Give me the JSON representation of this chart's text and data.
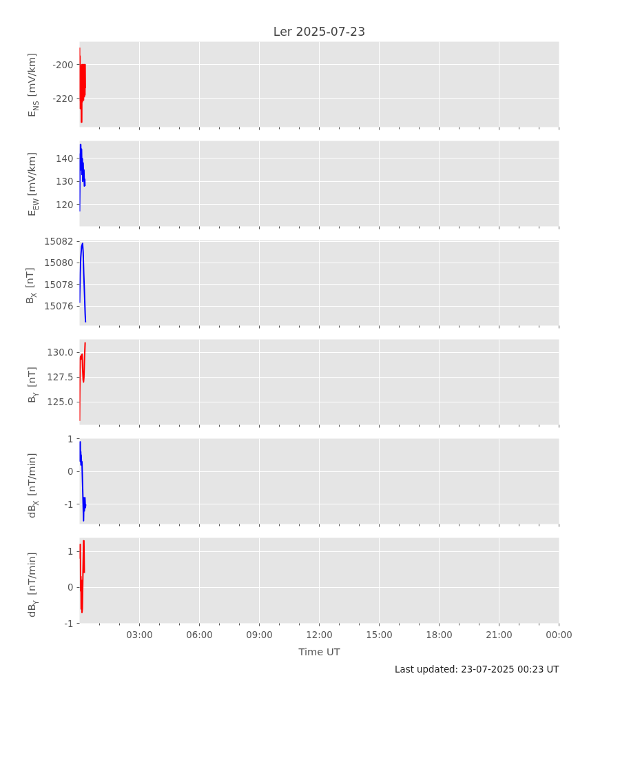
{
  "chart_data": [
    {
      "type": "line",
      "title": "Ler 2025-07-23",
      "ylabel": "E$_{NS}$ [mV/km]",
      "tick_labels": "y",
      "grid": true,
      "xlim": [
        0,
        24
      ],
      "xticks": [
        {
          "value": 1,
          "label": null
        },
        {
          "value": 2,
          "label": null
        },
        {
          "value": 3,
          "label": null
        },
        {
          "value": 4,
          "label": null
        },
        {
          "value": 5,
          "label": null
        },
        {
          "value": 6,
          "label": null
        },
        {
          "value": 7,
          "label": null
        },
        {
          "value": 8,
          "label": null
        },
        {
          "value": 9,
          "label": null
        },
        {
          "value": 10,
          "label": null
        },
        {
          "value": 11,
          "label": null
        },
        {
          "value": 12,
          "label": null
        },
        {
          "value": 13,
          "label": null
        },
        {
          "value": 14,
          "label": null
        },
        {
          "value": 15,
          "label": null
        },
        {
          "value": 16,
          "label": null
        },
        {
          "value": 17,
          "label": null
        },
        {
          "value": 18,
          "label": null
        },
        {
          "value": 19,
          "label": null
        },
        {
          "value": 20,
          "label": null
        },
        {
          "value": 21,
          "label": null
        },
        {
          "value": 22,
          "label": null
        },
        {
          "value": 23,
          "label": null
        },
        {
          "value": 24,
          "label": null
        }
      ],
      "ylim": [
        -237,
        -186.5
      ],
      "yticks": [
        -220,
        -200
      ],
      "x": [
        0,
        0.01,
        0.02,
        0.03,
        0.04,
        0.05,
        0.06,
        0.07,
        0.08,
        0.09,
        0.1,
        0.11,
        0.12,
        0.14,
        0.15,
        0.17,
        0.18,
        0.2,
        0.22,
        0.24,
        0.25,
        0.27,
        0.28,
        0.29
      ],
      "series": [
        {
          "color": "#ff0000",
          "values": [
            -190,
            -221,
            -195,
            -226,
            -200,
            -224,
            -201,
            -225,
            -202,
            -234,
            -203,
            -234,
            -200,
            -222,
            -200,
            -220,
            -200,
            -221,
            -200,
            -219,
            -200,
            -218,
            -200,
            -214
          ]
        }
      ]
    },
    {
      "type": "line",
      "ylabel": "E$_{EW}$ [mV/km]",
      "tick_labels": "y",
      "grid": true,
      "xlim": [
        0,
        24
      ],
      "xticks": [
        {
          "value": 1,
          "label": null
        },
        {
          "value": 2,
          "label": null
        },
        {
          "value": 3,
          "label": null
        },
        {
          "value": 4,
          "label": null
        },
        {
          "value": 5,
          "label": null
        },
        {
          "value": 6,
          "label": null
        },
        {
          "value": 7,
          "label": null
        },
        {
          "value": 8,
          "label": null
        },
        {
          "value": 9,
          "label": null
        },
        {
          "value": 10,
          "label": null
        },
        {
          "value": 11,
          "label": null
        },
        {
          "value": 12,
          "label": null
        },
        {
          "value": 13,
          "label": null
        },
        {
          "value": 14,
          "label": null
        },
        {
          "value": 15,
          "label": null
        },
        {
          "value": 16,
          "label": null
        },
        {
          "value": 17,
          "label": null
        },
        {
          "value": 18,
          "label": null
        },
        {
          "value": 19,
          "label": null
        },
        {
          "value": 20,
          "label": null
        },
        {
          "value": 21,
          "label": null
        },
        {
          "value": 22,
          "label": null
        },
        {
          "value": 23,
          "label": null
        },
        {
          "value": 24,
          "label": null
        }
      ],
      "ylim": [
        110.5,
        147.6
      ],
      "yticks": [
        120,
        130,
        140
      ],
      "x": [
        0,
        0.01,
        0.02,
        0.03,
        0.04,
        0.05,
        0.06,
        0.08,
        0.1,
        0.12,
        0.14,
        0.16,
        0.18,
        0.2,
        0.22,
        0.24,
        0.26,
        0.27
      ],
      "series": [
        {
          "color": "#0000ff",
          "values": [
            117,
            126,
            142,
            138,
            146,
            136,
            146,
            135,
            144,
            133,
            140,
            130,
            138,
            131,
            135,
            128,
            131,
            128
          ]
        }
      ]
    },
    {
      "type": "line",
      "ylabel": "B$_{X}$ [nT]",
      "tick_labels": "y",
      "grid": true,
      "xlim": [
        0,
        24
      ],
      "xticks": [
        {
          "value": 1,
          "label": null
        },
        {
          "value": 2,
          "label": null
        },
        {
          "value": 3,
          "label": null
        },
        {
          "value": 4,
          "label": null
        },
        {
          "value": 5,
          "label": null
        },
        {
          "value": 6,
          "label": null
        },
        {
          "value": 7,
          "label": null
        },
        {
          "value": 8,
          "label": null
        },
        {
          "value": 9,
          "label": null
        },
        {
          "value": 10,
          "label": null
        },
        {
          "value": 11,
          "label": null
        },
        {
          "value": 12,
          "label": null
        },
        {
          "value": 13,
          "label": null
        },
        {
          "value": 14,
          "label": null
        },
        {
          "value": 15,
          "label": null
        },
        {
          "value": 16,
          "label": null
        },
        {
          "value": 17,
          "label": null
        },
        {
          "value": 18,
          "label": null
        },
        {
          "value": 19,
          "label": null
        },
        {
          "value": 20,
          "label": null
        },
        {
          "value": 21,
          "label": null
        },
        {
          "value": 22,
          "label": null
        },
        {
          "value": 23,
          "label": null
        },
        {
          "value": 24,
          "label": null
        }
      ],
      "ylim": [
        15074.2,
        15082.1
      ],
      "yticks": [
        15076,
        15078,
        15080,
        15082
      ],
      "x": [
        0,
        0.03,
        0.06,
        0.1,
        0.15,
        0.18,
        0.21,
        0.25,
        0.28,
        0.3
      ],
      "series": [
        {
          "color": "#0000ff",
          "values": [
            15076.3,
            15079,
            15080.5,
            15081.5,
            15081.8,
            15081,
            15079,
            15077,
            15075.3,
            15074.5
          ]
        }
      ]
    },
    {
      "type": "line",
      "ylabel": "B$_{Y}$ [nT]",
      "tick_labels": "y",
      "grid": true,
      "xlim": [
        0,
        24
      ],
      "xticks": [
        {
          "value": 1,
          "label": null
        },
        {
          "value": 2,
          "label": null
        },
        {
          "value": 3,
          "label": null
        },
        {
          "value": 4,
          "label": null
        },
        {
          "value": 5,
          "label": null
        },
        {
          "value": 6,
          "label": null
        },
        {
          "value": 7,
          "label": null
        },
        {
          "value": 8,
          "label": null
        },
        {
          "value": 9,
          "label": null
        },
        {
          "value": 10,
          "label": null
        },
        {
          "value": 11,
          "label": null
        },
        {
          "value": 12,
          "label": null
        },
        {
          "value": 13,
          "label": null
        },
        {
          "value": 14,
          "label": null
        },
        {
          "value": 15,
          "label": null
        },
        {
          "value": 16,
          "label": null
        },
        {
          "value": 17,
          "label": null
        },
        {
          "value": 18,
          "label": null
        },
        {
          "value": 19,
          "label": null
        },
        {
          "value": 20,
          "label": null
        },
        {
          "value": 21,
          "label": null
        },
        {
          "value": 22,
          "label": null
        },
        {
          "value": 23,
          "label": null
        },
        {
          "value": 24,
          "label": null
        }
      ],
      "ylim": [
        122.7,
        131.3
      ],
      "yticks": [
        {
          "value": 125,
          "label": "125.0"
        },
        {
          "value": 127.5,
          "label": "127.5"
        },
        {
          "value": 130,
          "label": "130.0"
        }
      ],
      "x": [
        0,
        0.01,
        0.03,
        0.05,
        0.07,
        0.1,
        0.13,
        0.15,
        0.18,
        0.2,
        0.22,
        0.25,
        0.28
      ],
      "series": [
        {
          "color": "#ff0000",
          "values": [
            123.1,
            126,
            129.4,
            129.6,
            129.3,
            129.7,
            129.8,
            128.5,
            127.2,
            127.0,
            127.5,
            129.5,
            131.0
          ]
        }
      ]
    },
    {
      "type": "line",
      "ylabel": "dB$_{X}$ [nT/min]",
      "tick_labels": "y",
      "grid": true,
      "xlim": [
        0,
        24
      ],
      "xticks": [
        {
          "value": 1,
          "label": null
        },
        {
          "value": 2,
          "label": null
        },
        {
          "value": 3,
          "label": null
        },
        {
          "value": 4,
          "label": null
        },
        {
          "value": 5,
          "label": null
        },
        {
          "value": 6,
          "label": null
        },
        {
          "value": 7,
          "label": null
        },
        {
          "value": 8,
          "label": null
        },
        {
          "value": 9,
          "label": null
        },
        {
          "value": 10,
          "label": null
        },
        {
          "value": 11,
          "label": null
        },
        {
          "value": 12,
          "label": null
        },
        {
          "value": 13,
          "label": null
        },
        {
          "value": 14,
          "label": null
        },
        {
          "value": 15,
          "label": null
        },
        {
          "value": 16,
          "label": null
        },
        {
          "value": 17,
          "label": null
        },
        {
          "value": 18,
          "label": null
        },
        {
          "value": 19,
          "label": null
        },
        {
          "value": 20,
          "label": null
        },
        {
          "value": 21,
          "label": null
        },
        {
          "value": 22,
          "label": null
        },
        {
          "value": 23,
          "label": null
        },
        {
          "value": 24,
          "label": null
        }
      ],
      "ylim": [
        -1.6,
        1.0
      ],
      "yticks": [
        -1,
        0,
        1
      ],
      "x": [
        0,
        0.02,
        0.035,
        0.045,
        0.06,
        0.07,
        0.08,
        0.1,
        0.12,
        0.2,
        0.22,
        0.24,
        0.27,
        0.29,
        0.31
      ],
      "series": [
        {
          "color": "#0000ff",
          "values": [
            0.3,
            0.9,
            0.9,
            0.3,
            0.6,
            0.2,
            0.5,
            0.2,
            0.3,
            -1.5,
            -0.8,
            -1.2,
            -0.8,
            -1.1,
            -1.0
          ]
        }
      ]
    },
    {
      "type": "line",
      "ylabel": "dB$_{Y}$ [nT/min]",
      "xlabel": "Time UT",
      "grid": true,
      "annotations": [
        "Last updated: 23-07-2025 00:23 UT"
      ],
      "xlim": [
        0,
        24
      ],
      "xticks": [
        {
          "value": 1,
          "label": null
        },
        {
          "value": 2,
          "label": null
        },
        {
          "value": 3,
          "label": "03:00"
        },
        {
          "value": 4,
          "label": null
        },
        {
          "value": 5,
          "label": null
        },
        {
          "value": 6,
          "label": "06:00"
        },
        {
          "value": 7,
          "label": null
        },
        {
          "value": 8,
          "label": null
        },
        {
          "value": 9,
          "label": "09:00"
        },
        {
          "value": 10,
          "label": null
        },
        {
          "value": 11,
          "label": null
        },
        {
          "value": 12,
          "label": "12:00"
        },
        {
          "value": 13,
          "label": null
        },
        {
          "value": 14,
          "label": null
        },
        {
          "value": 15,
          "label": "15:00"
        },
        {
          "value": 16,
          "label": null
        },
        {
          "value": 17,
          "label": null
        },
        {
          "value": 18,
          "label": "18:00"
        },
        {
          "value": 19,
          "label": null
        },
        {
          "value": 20,
          "label": null
        },
        {
          "value": 21,
          "label": "21:00"
        },
        {
          "value": 22,
          "label": null
        },
        {
          "value": 23,
          "label": null
        },
        {
          "value": 24,
          "label": "00:00"
        }
      ],
      "ylim": [
        -1,
        1.38
      ],
      "yticks": [
        -1,
        0,
        1
      ],
      "x": [
        0,
        0.02,
        0.035,
        0.05,
        0.07,
        0.08,
        0.1,
        0.12,
        0.14,
        0.17,
        0.2,
        0.22,
        0.24
      ],
      "series": [
        {
          "color": "#ff0000",
          "values": [
            0.8,
            1.2,
            1.2,
            -0.1,
            0.3,
            -0.6,
            0.2,
            -0.7,
            -0.6,
            0.4,
            1.3,
            1.3,
            0.4
          ]
        }
      ]
    }
  ]
}
